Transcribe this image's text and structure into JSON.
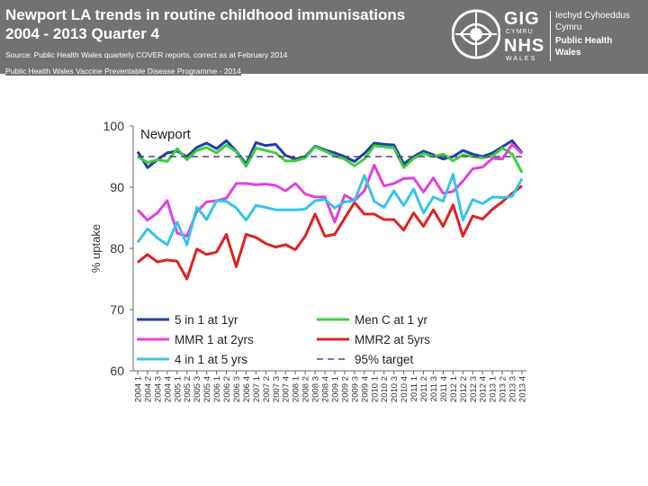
{
  "header": {
    "title": "Newport LA trends in routine childhood immunisations 2004 - 2013 Quarter 4",
    "source": "Source: Public Health Wales quarterly COVER reports, correct as at February 2014",
    "programme": "Public Health Wales Vaccine Preventable Disease Programme - 2014",
    "background": "#727272"
  },
  "logo": {
    "gig": "GIG",
    "cymru": "CYMRU",
    "nhs": "NHS",
    "wales": "WALES",
    "org_lines": [
      "Iechyd Cyhoeddus",
      "Cymru",
      "Public Health",
      "Wales"
    ]
  },
  "chart_data": {
    "type": "line",
    "title": "Newport",
    "ylabel": "% uptake",
    "xlabel": "",
    "ylim": [
      60,
      100
    ],
    "yticks": [
      60,
      70,
      80,
      90,
      100
    ],
    "grid": false,
    "legend_position": "bottom-right",
    "categories": [
      "2004 1",
      "2004 2",
      "2004 3",
      "2004 4",
      "2005 1",
      "2005 2",
      "2005 3",
      "2005 4",
      "2006 1",
      "2006 2",
      "2006 3",
      "2006 4",
      "2007 1",
      "2007 2",
      "2007 3",
      "2007 4",
      "2008 1",
      "2008 2",
      "2008 3",
      "2008 4",
      "2009 1",
      "2009 2",
      "2009 3",
      "2009 4",
      "2010 1",
      "2010 2",
      "2010 3",
      "2010 4",
      "2011 1",
      "2011 2",
      "2011 3",
      "2011 4",
      "2012 1",
      "2012 2",
      "2012 3",
      "2012 4",
      "2013 1",
      "2013 2",
      "2013 3",
      "2013 4"
    ],
    "series": [
      {
        "name": "5 in 1 at 1yr",
        "color": "#1f3fa6",
        "dash": false,
        "values": [
          95.8,
          93.2,
          94.5,
          95.6,
          95.9,
          95.0,
          96.5,
          97.2,
          96.3,
          97.6,
          95.9,
          93.8,
          97.3,
          96.8,
          97.0,
          95.2,
          94.6,
          95.0,
          96.7,
          96.1,
          95.6,
          95.0,
          94.2,
          95.5,
          97.2,
          97.0,
          96.9,
          93.8,
          95.0,
          95.9,
          95.3,
          94.6,
          95.0,
          96.0,
          95.4,
          95.0,
          95.6,
          96.6,
          97.6,
          95.6
        ]
      },
      {
        "name": "Men C at 1 yr",
        "color": "#3ad03a",
        "dash": false,
        "values": [
          95.0,
          94.0,
          94.5,
          94.2,
          96.3,
          94.5,
          96.0,
          96.5,
          95.6,
          96.9,
          95.8,
          93.4,
          96.4,
          96.0,
          95.6,
          94.3,
          94.3,
          94.8,
          96.6,
          95.9,
          95.1,
          94.6,
          93.5,
          94.6,
          96.8,
          96.6,
          96.4,
          93.2,
          94.7,
          95.5,
          95.0,
          95.4,
          94.3,
          95.3,
          95.0,
          94.8,
          95.1,
          96.4,
          95.4,
          92.4
        ]
      },
      {
        "name": "MMR 1 at 2yrs",
        "color": "#e040e0",
        "dash": false,
        "values": [
          86.3,
          84.6,
          85.8,
          87.8,
          82.5,
          82.0,
          86.0,
          87.6,
          87.8,
          88.2,
          90.6,
          90.6,
          90.4,
          90.5,
          90.3,
          89.4,
          90.6,
          88.9,
          88.4,
          88.4,
          84.3,
          88.7,
          87.8,
          89.4,
          93.6,
          90.2,
          90.6,
          91.4,
          91.5,
          89.2,
          91.5,
          89.0,
          89.3,
          91.0,
          93.0,
          93.3,
          94.7,
          94.6,
          97.0,
          95.5
        ]
      },
      {
        "name": "MMR2 at 5yrs",
        "color": "#e02020",
        "dash": false,
        "values": [
          77.7,
          79.0,
          77.8,
          78.1,
          77.9,
          75.0,
          79.9,
          79.0,
          79.4,
          82.3,
          77.0,
          82.3,
          81.8,
          80.8,
          80.2,
          80.6,
          79.8,
          82.0,
          85.6,
          82.0,
          82.3,
          84.9,
          87.5,
          85.6,
          85.6,
          84.7,
          84.7,
          83.0,
          85.8,
          83.6,
          86.3,
          83.6,
          87.1,
          82.0,
          85.3,
          84.8,
          86.4,
          87.6,
          89.0,
          90.2
        ]
      },
      {
        "name": "4 in 1 at 5 yrs",
        "color": "#35c5e8",
        "dash": false,
        "values": [
          81.0,
          83.2,
          81.7,
          80.6,
          84.3,
          80.6,
          86.7,
          84.7,
          87.8,
          87.7,
          86.6,
          84.6,
          87.0,
          86.7,
          86.3,
          86.3,
          86.3,
          86.4,
          87.8,
          88.0,
          86.6,
          87.6,
          87.8,
          91.9,
          87.7,
          86.7,
          89.4,
          87.0,
          89.7,
          85.8,
          88.4,
          87.7,
          92.1,
          84.6,
          88.0,
          87.3,
          88.4,
          88.3,
          88.5,
          91.4
        ]
      },
      {
        "name": "95% target",
        "color": "#5a3a8a",
        "dash": true,
        "values": [
          95,
          95,
          95,
          95,
          95,
          95,
          95,
          95,
          95,
          95,
          95,
          95,
          95,
          95,
          95,
          95,
          95,
          95,
          95,
          95,
          95,
          95,
          95,
          95,
          95,
          95,
          95,
          95,
          95,
          95,
          95,
          95,
          95,
          95,
          95,
          95,
          95,
          95,
          95,
          95
        ]
      }
    ]
  }
}
